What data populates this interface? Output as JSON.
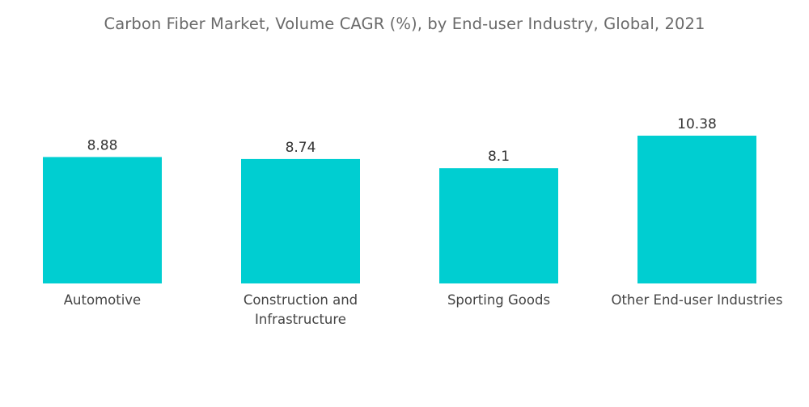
{
  "chart_data": {
    "type": "bar",
    "title": "Carbon Fiber Market, Volume CAGR (%), by End-user Industry, Global, 2021",
    "categories": [
      [
        "Automotive"
      ],
      [
        "Construction and",
        "Infrastructure"
      ],
      [
        "Sporting Goods"
      ],
      [
        "Other End-user Industries"
      ]
    ],
    "values": [
      8.88,
      8.74,
      8.1,
      10.38
    ],
    "value_labels": [
      "8.88",
      "8.74",
      "8.1",
      "10.38"
    ],
    "xlabel": "",
    "ylabel": "",
    "ylim": [
      0,
      10.38
    ],
    "grid": false,
    "legend": "none",
    "bar_color": "#00CED1"
  }
}
